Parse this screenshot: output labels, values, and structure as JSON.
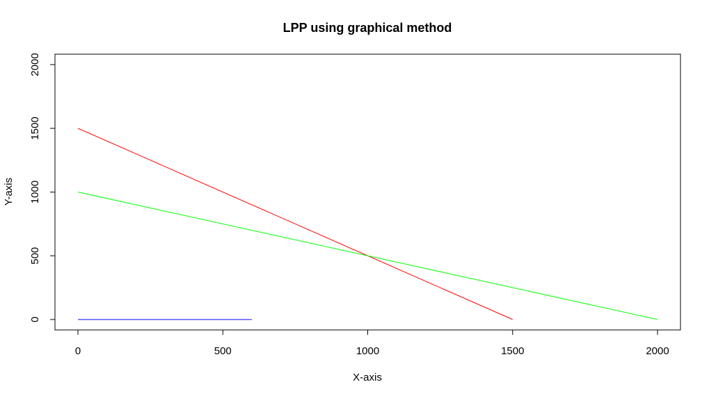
{
  "chart_data": {
    "type": "line",
    "title": "LPP using graphical method",
    "xlabel": "X-axis",
    "ylabel": "Y-axis",
    "xlim": [
      0,
      2000
    ],
    "ylim": [
      0,
      2000
    ],
    "x_ticks": [
      0,
      500,
      1000,
      1500,
      2000
    ],
    "y_ticks": [
      0,
      500,
      1000,
      1500,
      2000
    ],
    "grid": false,
    "series": [
      {
        "color": "#ff0000",
        "x": [
          0,
          1500
        ],
        "y": [
          1500,
          0
        ]
      },
      {
        "color": "#00ff00",
        "x": [
          0,
          2000
        ],
        "y": [
          1000,
          0
        ]
      },
      {
        "color": "#0000ff",
        "x": [
          0,
          600
        ],
        "y": [
          0,
          0
        ]
      }
    ]
  }
}
